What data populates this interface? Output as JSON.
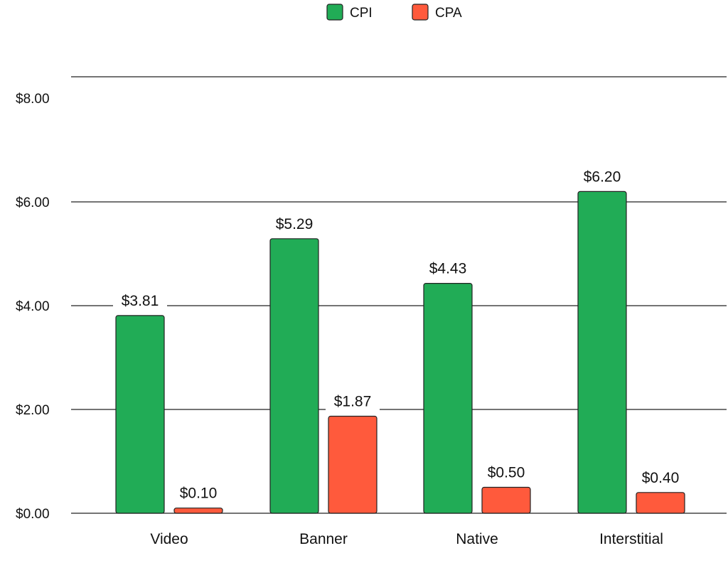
{
  "chart_data": {
    "type": "bar",
    "categories": [
      "Video",
      "Banner",
      "Native",
      "Interstitial"
    ],
    "series": [
      {
        "name": "CPI",
        "color": "#21ac56",
        "values": [
          3.81,
          5.29,
          4.43,
          6.2
        ],
        "labels": [
          "$3.81",
          "$5.29",
          "$4.43",
          "$6.20"
        ]
      },
      {
        "name": "CPA",
        "color": "#ff5a3c",
        "values": [
          0.1,
          1.87,
          0.5,
          0.4
        ],
        "labels": [
          "$0.10",
          "$1.87",
          "$0.50",
          "$0.40"
        ]
      }
    ],
    "yticks": [
      0,
      2,
      4,
      6,
      8
    ],
    "ytick_labels": [
      "$0.00",
      "$2.00",
      "$4.00",
      "$6.00",
      "$8.00"
    ],
    "ylim": [
      0,
      8
    ],
    "title": "",
    "xlabel": "",
    "ylabel": "",
    "legend_position": "top-center",
    "grid": "horizontal"
  }
}
